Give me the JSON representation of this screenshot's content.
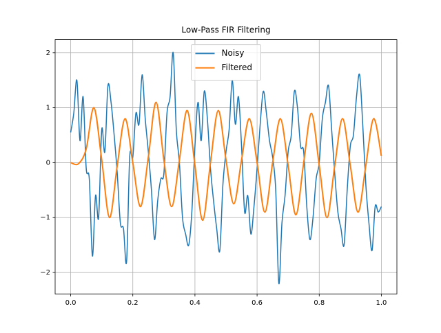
{
  "chart_data": {
    "type": "line",
    "title": "Low-Pass FIR Filtering",
    "series": [
      {
        "name": "Noisy",
        "color": "#1f77b4",
        "x": [
          0,
          0.01,
          0.02,
          0.03,
          0.04,
          0.05,
          0.06,
          0.07,
          0.08,
          0.09,
          0.1,
          0.11,
          0.12,
          0.13,
          0.14,
          0.15,
          0.16,
          0.17,
          0.18,
          0.19,
          0.2,
          0.21,
          0.22,
          0.23,
          0.24,
          0.25,
          0.26,
          0.27,
          0.28,
          0.29,
          0.3,
          0.31,
          0.32,
          0.33,
          0.34,
          0.35,
          0.36,
          0.37,
          0.38,
          0.39,
          0.4,
          0.41,
          0.42,
          0.43,
          0.44,
          0.45,
          0.46,
          0.47,
          0.48,
          0.49,
          0.5,
          0.51,
          0.52,
          0.53,
          0.54,
          0.55,
          0.56,
          0.57,
          0.58,
          0.59,
          0.6,
          0.61,
          0.62,
          0.63,
          0.64,
          0.65,
          0.66,
          0.67,
          0.68,
          0.69,
          0.7,
          0.71,
          0.72,
          0.73,
          0.74,
          0.75,
          0.76,
          0.77,
          0.78,
          0.79,
          0.8,
          0.81,
          0.82,
          0.83,
          0.84,
          0.85,
          0.86,
          0.87,
          0.88,
          0.89,
          0.9,
          0.91,
          0.92,
          0.93,
          0.94,
          0.95,
          0.96,
          0.97,
          0.98,
          0.99,
          1.0
        ],
        "values": [
          0.55,
          0.9,
          1.5,
          0.4,
          1.2,
          -0.1,
          -0.3,
          -1.7,
          -0.6,
          -1.0,
          0.6,
          0.2,
          1.4,
          1.1,
          0.5,
          -0.2,
          -1.1,
          -1.2,
          -1.8,
          0.1,
          0.1,
          0.9,
          0.7,
          1.6,
          0.8,
          0.2,
          -0.5,
          -1.4,
          -0.7,
          -0.3,
          -0.2,
          0.9,
          1.2,
          2.0,
          0.6,
          0.0,
          -1.0,
          -1.3,
          -1.5,
          -0.9,
          0.3,
          1.1,
          0.4,
          1.3,
          0.8,
          -0.1,
          -0.7,
          -1.2,
          -1.6,
          -0.4,
          0.2,
          0.6,
          1.5,
          0.7,
          1.2,
          0.3,
          -0.9,
          -0.6,
          -1.3,
          -0.8,
          -0.1,
          0.7,
          1.3,
          0.9,
          0.4,
          0.1,
          -0.5,
          -2.2,
          -1.1,
          -0.6,
          0.2,
          0.5,
          1.3,
          1.0,
          0.3,
          0.2,
          -0.8,
          -1.4,
          -1.0,
          -0.3,
          0.0,
          0.8,
          1.1,
          1.4,
          0.6,
          -0.2,
          -0.9,
          -1.2,
          -1.5,
          -0.5,
          0.3,
          0.5,
          1.2,
          1.6,
          0.7,
          -0.4,
          -1.1,
          -1.6,
          -0.8,
          -0.9,
          -0.8
        ]
      },
      {
        "name": "Filtered",
        "color": "#ff7f0e",
        "x": [
          0,
          0.025,
          0.05,
          0.075,
          0.1,
          0.125,
          0.15,
          0.175,
          0.2,
          0.225,
          0.25,
          0.275,
          0.3,
          0.325,
          0.35,
          0.375,
          0.4,
          0.425,
          0.45,
          0.475,
          0.5,
          0.525,
          0.55,
          0.575,
          0.6,
          0.625,
          0.65,
          0.675,
          0.7,
          0.725,
          0.75,
          0.775,
          0.8,
          0.825,
          0.85,
          0.875,
          0.9,
          0.925,
          0.95,
          0.975,
          1.0
        ],
        "values": [
          0,
          -0.02,
          0.25,
          1.0,
          0.05,
          -1.0,
          -0.05,
          0.8,
          0,
          -0.8,
          0.1,
          1.1,
          0.05,
          -0.8,
          0.05,
          0.95,
          -0.05,
          -1.05,
          0,
          0.95,
          0.05,
          -0.75,
          0.05,
          0.8,
          0,
          -0.9,
          0,
          0.8,
          -0.05,
          -0.95,
          0,
          0.9,
          -0.05,
          -1.0,
          -0.05,
          0.8,
          -0.05,
          -0.9,
          -0.05,
          0.8,
          0.12
        ]
      }
    ],
    "xlim": [
      -0.05,
      1.05
    ],
    "xticks": [
      {
        "value": 0,
        "label": "0.0"
      },
      {
        "value": 0.2,
        "label": "0.2"
      },
      {
        "value": 0.4,
        "label": "0.4"
      },
      {
        "value": 0.6,
        "label": "0.6"
      },
      {
        "value": 0.8,
        "label": "0.8"
      },
      {
        "value": 1,
        "label": "1.0"
      }
    ],
    "ylim": [
      -2.39,
      2.24
    ],
    "yticks": [
      {
        "value": -2,
        "label": "−2"
      },
      {
        "value": -1,
        "label": "−1"
      },
      0,
      1,
      2
    ],
    "grid": true,
    "legend": "upper center"
  }
}
